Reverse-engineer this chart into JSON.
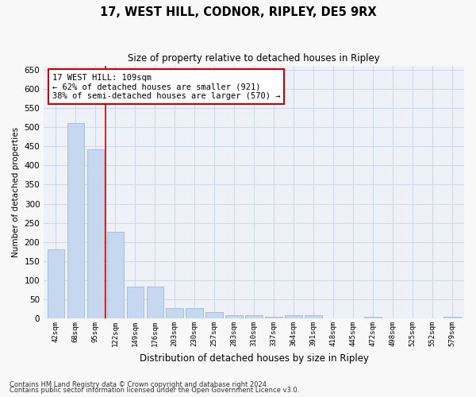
{
  "title1": "17, WEST HILL, CODNOR, RIPLEY, DE5 9RX",
  "title2": "Size of property relative to detached houses in Ripley",
  "xlabel": "Distribution of detached houses by size in Ripley",
  "ylabel": "Number of detached properties",
  "footer1": "Contains HM Land Registry data © Crown copyright and database right 2024.",
  "footer2": "Contains public sector information licensed under the Open Government Licence v3.0.",
  "categories": [
    "42sqm",
    "68sqm",
    "95sqm",
    "122sqm",
    "149sqm",
    "176sqm",
    "203sqm",
    "230sqm",
    "257sqm",
    "283sqm",
    "310sqm",
    "337sqm",
    "364sqm",
    "391sqm",
    "418sqm",
    "445sqm",
    "472sqm",
    "498sqm",
    "525sqm",
    "552sqm",
    "579sqm"
  ],
  "values": [
    180,
    510,
    443,
    226,
    83,
    83,
    27,
    27,
    16,
    8,
    8,
    5,
    8,
    8,
    0,
    0,
    5,
    0,
    0,
    0,
    5
  ],
  "bar_color": "#c5d8f0",
  "bar_edge_color": "#a0b8d8",
  "grid_color": "#d0d8e8",
  "bg_color": "#eef2f8",
  "fig_color": "#f8f8f8",
  "vline_x": 2.5,
  "vline_color": "#cc0000",
  "annotation_text": "17 WEST HILL: 109sqm\n← 62% of detached houses are smaller (921)\n38% of semi-detached houses are larger (570) →",
  "annotation_box_color": "#ffffff",
  "annotation_box_edge_color": "#cc0000",
  "ylim": [
    0,
    660
  ],
  "yticks": [
    0,
    50,
    100,
    150,
    200,
    250,
    300,
    350,
    400,
    450,
    500,
    550,
    600,
    650
  ]
}
